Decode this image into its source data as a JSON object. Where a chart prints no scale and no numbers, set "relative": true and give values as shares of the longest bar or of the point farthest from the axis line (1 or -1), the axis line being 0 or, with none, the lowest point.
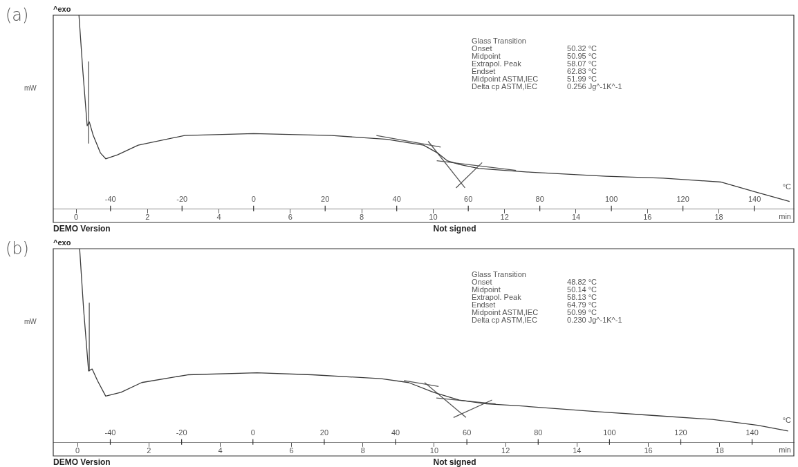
{
  "chart_data": [
    {
      "type": "line",
      "title": "(a)",
      "ylabel": "mW",
      "xlabel": "min",
      "x2label": "°C",
      "relative": true,
      "legend": false,
      "grid": false,
      "marker": "none",
      "line_style": "solid",
      "xlim": [
        -0.64,
        20.1
      ],
      "xticks": [
        0,
        2,
        4,
        6,
        8,
        10,
        12,
        14,
        16,
        18
      ],
      "x2lim": [
        -56,
        151
      ],
      "x2ticks": [
        -40,
        -20,
        0,
        20,
        40,
        60,
        80,
        100,
        120,
        140
      ],
      "series": [
        {
          "color": "#3a3a3a",
          "x": [
            0.08,
            0.19,
            0.31,
            0.37,
            0.48,
            0.68,
            0.83,
            1.16,
            1.74,
            3.04,
            4.97,
            7.16,
            8.7,
            9.73,
            10.12,
            10.39,
            10.74,
            11.28,
            12.77,
            14.84,
            16.44,
            18.05,
            19.01,
            19.98
          ],
          "values": [
            1,
            0.71,
            0.43,
            0.45,
            0.38,
            0.29,
            0.26,
            0.28,
            0.33,
            0.38,
            0.39,
            0.38,
            0.36,
            0.33,
            0.29,
            0.25,
            0.23,
            0.21,
            0.19,
            0.17,
            0.16,
            0.14,
            0.09,
            0.04
          ]
        },
        {
          "color": "#555555",
          "x": [
            9.86,
            10.89
          ],
          "values": [
            0.35,
            0.11
          ]
        },
        {
          "color": "#555555",
          "x": [
            10.64,
            11.37
          ],
          "values": [
            0.11,
            0.24
          ]
        },
        {
          "color": "#555555",
          "x": [
            8.41,
            10.21
          ],
          "values": [
            0.38,
            0.32
          ]
        },
        {
          "color": "#555555",
          "x": [
            10.1,
            12.32
          ],
          "values": [
            0.25,
            0.2
          ]
        },
        {
          "color": "#555555",
          "x": [
            0.35,
            0.35
          ],
          "values": [
            0.76,
            0.34
          ]
        }
      ],
      "annotations": [
        "^exo",
        "DEMO Version",
        "Not signed",
        "Glass Transition",
        "Onset",
        "50.32 °C",
        "Midpoint",
        "50.95 °C",
        "Extrapol. Peak",
        "58.07 °C",
        "Endset",
        "62.83 °C",
        "Midpoint ASTM,IEC",
        "51.99 °C",
        "Delta cp ASTM,IEC",
        "0.256 Jg^-1K^-1"
      ]
    },
    {
      "type": "line",
      "title": "(b)",
      "ylabel": "mW",
      "xlabel": "min",
      "x2label": "°C",
      "relative": true,
      "legend": false,
      "grid": false,
      "marker": "none",
      "line_style": "solid",
      "xlim": [
        -0.68,
        20.08
      ],
      "xticks": [
        0,
        2,
        4,
        6,
        8,
        10,
        12,
        14,
        16,
        18
      ],
      "x2lim": [
        -56,
        151.7
      ],
      "x2ticks": [
        -40,
        -20,
        0,
        20,
        40,
        60,
        80,
        100,
        120,
        140
      ],
      "series": [
        {
          "color": "#3a3a3a",
          "x": [
            0.06,
            0.17,
            0.31,
            0.41,
            0.56,
            0.79,
            1.22,
            1.8,
            3.09,
            5.03,
            6.58,
            8.51,
            9.28,
            9.98,
            10.7,
            11.47,
            12.38,
            14.56,
            16.17,
            17.8,
            19.07,
            19.92
          ],
          "values": [
            1,
            0.69,
            0.37,
            0.38,
            0.32,
            0.24,
            0.26,
            0.31,
            0.35,
            0.36,
            0.35,
            0.33,
            0.31,
            0.26,
            0.22,
            0.2,
            0.19,
            0.16,
            0.14,
            0.12,
            0.09,
            0.06
          ]
        },
        {
          "color": "#555555",
          "x": [
            9.73,
            10.89
          ],
          "values": [
            0.31,
            0.13
          ]
        },
        {
          "color": "#555555",
          "x": [
            10.54,
            11.62
          ],
          "values": [
            0.13,
            0.22
          ]
        },
        {
          "color": "#555555",
          "x": [
            9.15,
            10.12
          ],
          "values": [
            0.32,
            0.29
          ]
        },
        {
          "color": "#555555",
          "x": [
            10.06,
            11.72
          ],
          "values": [
            0.23,
            0.2
          ]
        },
        {
          "color": "#555555",
          "x": [
            0.33,
            0.33
          ],
          "values": [
            0.72,
            0.37
          ]
        }
      ],
      "annotations": [
        "^exo",
        "DEMO Version",
        "Not signed",
        "Glass Transition",
        "Onset",
        "48.82 °C",
        "Midpoint",
        "50.14 °C",
        "Extrapol. Peak",
        "58.13 °C",
        "Endset",
        "64.79 °C",
        "Midpoint ASTM,IEC",
        "50.99 °C",
        "Delta cp ASTM,IEC",
        "0.230 Jg^-1K^-1"
      ]
    }
  ]
}
